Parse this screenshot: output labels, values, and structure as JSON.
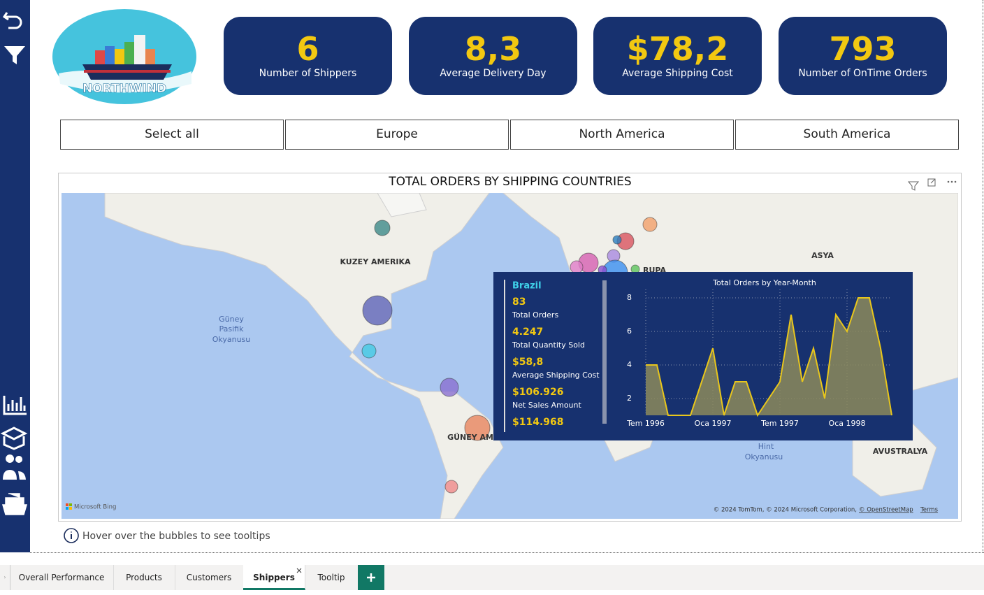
{
  "logo": "NORTHWIND",
  "kpis": [
    {
      "value": "6",
      "label": "Number of Shippers"
    },
    {
      "value": "8,3",
      "label": "Average Delivery Day"
    },
    {
      "value": "$78,2",
      "label": "Average Shipping Cost"
    },
    {
      "value": "793",
      "label": "Number of OnTime Orders"
    }
  ],
  "slicer": [
    "Select all",
    "Europe",
    "North America",
    "South America"
  ],
  "map": {
    "title": "TOTAL ORDERS BY SHIPPING COUNTRIES",
    "labels": [
      "KUZEY AMERIKA",
      "Güney",
      "Pasifik",
      "Okyanusu",
      "ASYA",
      "RUPA",
      "GÜNEY AM",
      "Hint",
      "Okyanusu",
      "AVUSTRALYA"
    ],
    "bing": "Microsoft Bing",
    "attribution": "© 2024 TomTom, © 2024 Microsoft Corporation,",
    "osm": "© OpenStreetMap",
    "terms": "Terms"
  },
  "tooltip": {
    "country": "Brazil",
    "metrics": [
      {
        "value": "83",
        "label": "Total Orders"
      },
      {
        "value": "4.247",
        "label": "Total Quantity Sold"
      },
      {
        "value": "$58,8",
        "label": "Average Shipping Cost"
      },
      {
        "value": "$106.926",
        "label": "Net Sales Amount"
      },
      {
        "value": "$114.968"
      }
    ]
  },
  "chart_data": {
    "type": "area",
    "title": "Total Orders by Year-Month",
    "categories": [
      "Tem 1996",
      null,
      null,
      null,
      null,
      null,
      "Oca 1997",
      null,
      null,
      null,
      null,
      null,
      "Tem 1997",
      null,
      null,
      null,
      null,
      null,
      "Oca 1998",
      null,
      null,
      null,
      null
    ],
    "values": [
      4,
      4,
      1,
      1,
      1,
      3,
      5,
      1,
      3,
      3,
      1,
      2,
      3,
      7,
      3,
      5,
      2,
      7,
      6,
      8,
      8,
      5,
      1
    ],
    "color": "#e8c61c",
    "ylim": [
      1,
      8.5
    ],
    "yticks": [
      2,
      4,
      6,
      8
    ],
    "grid": true
  },
  "hint": "Hover over the bubbles to see tooltips",
  "tabs": [
    "Overall Performance",
    "Products",
    "Customers",
    "Shippers",
    "Tooltip"
  ],
  "active_tab": 3
}
